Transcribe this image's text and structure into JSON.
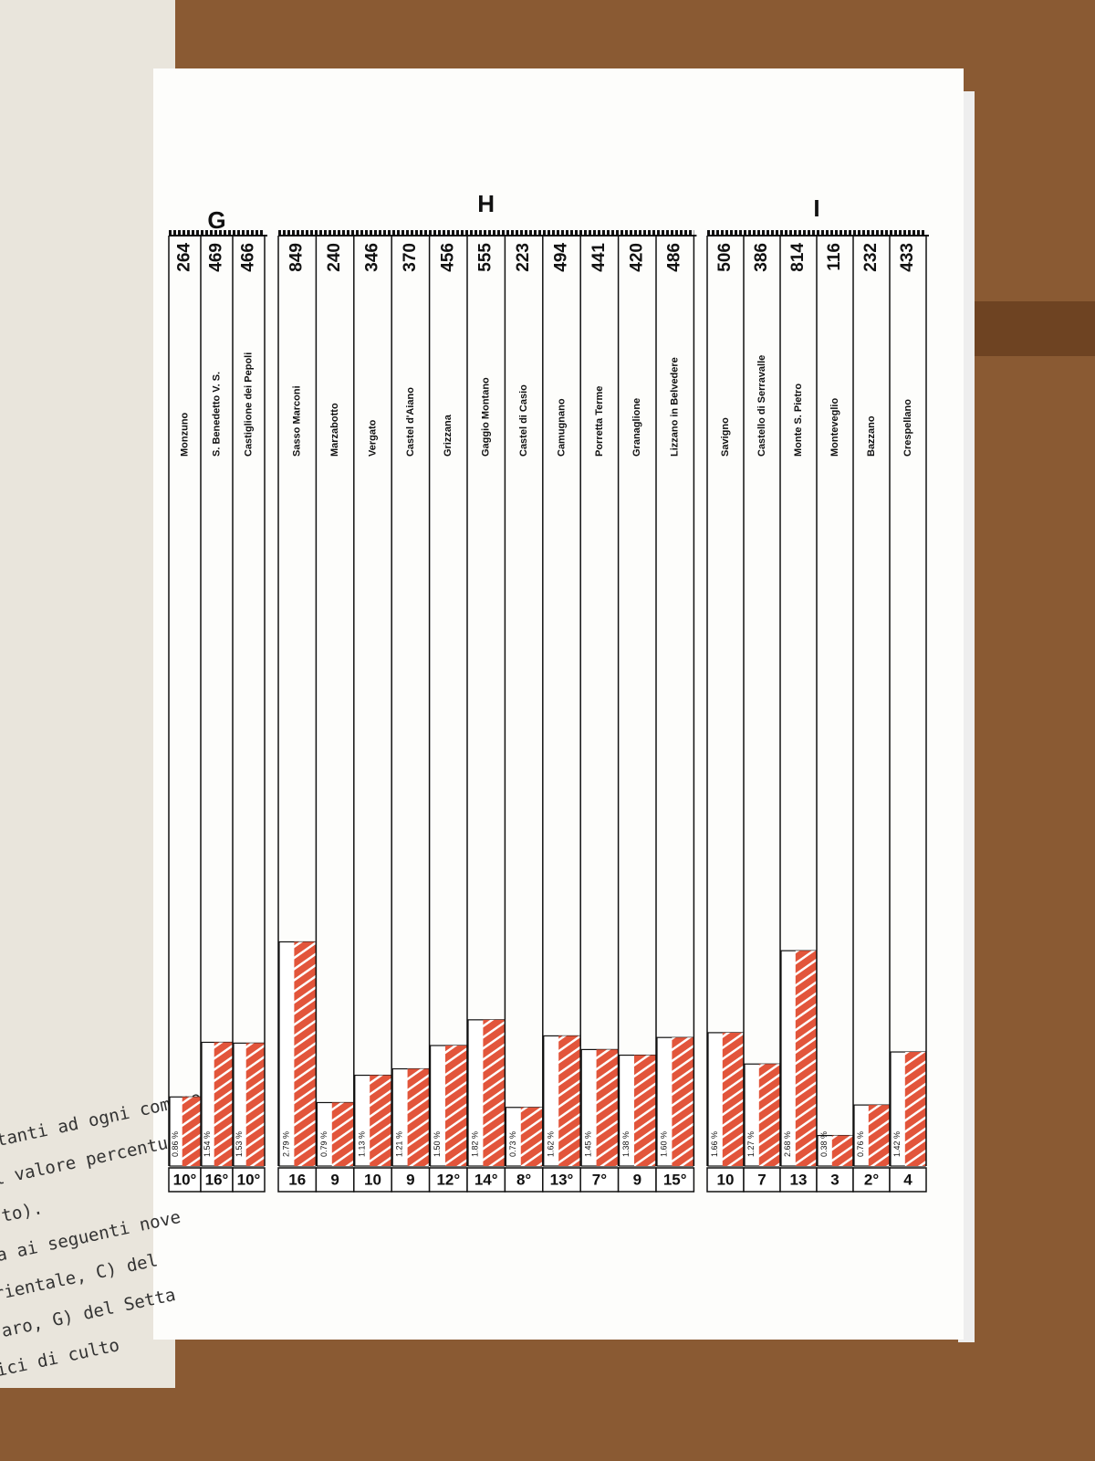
{
  "left_page_text": [
    "pettanti ad ogni comune",
    "il valore percentuale",
    "to).",
    "enza ai seguenti nove",
    "orientale, C) del",
    "aro, G) del Setta",
    "difici di culto"
  ],
  "chart_data": [
    {
      "type": "bar",
      "title": "G",
      "color": "#e2553b",
      "categories": [
        "Monzuno",
        "S. Benedetto V. S.",
        "Castiglione dei Pepoli"
      ],
      "counts": [
        264,
        469,
        466
      ],
      "values": [
        0.86,
        1.54,
        1.53
      ],
      "value_labels": [
        "0.86 %",
        "1.54 %",
        "1.53 %"
      ],
      "ranks": [
        "10°",
        "16°",
        "10°"
      ]
    },
    {
      "type": "bar",
      "title": "H",
      "color": "#e2553b",
      "categories": [
        "Sasso Marconi",
        "Marzabotto",
        "Vergato",
        "Castel d'Aiano",
        "Grizzana",
        "Gaggio Montano",
        "Castel di Casio",
        "Camugnano",
        "Porretta Terme",
        "Granaglione",
        "Lizzano in Belvedere"
      ],
      "counts": [
        849,
        240,
        346,
        370,
        456,
        555,
        223,
        494,
        441,
        420,
        486
      ],
      "values": [
        2.79,
        0.79,
        1.13,
        1.21,
        1.5,
        1.82,
        0.73,
        1.62,
        1.45,
        1.38,
        1.6
      ],
      "value_labels": [
        "2.79 %",
        "0.79 %",
        "1.13 %",
        "1.21 %",
        "1.50 %",
        "1.82 %",
        "0.73 %",
        "1.62 %",
        "1.45 %",
        "1.38 %",
        "1.60 %"
      ],
      "ranks": [
        "16",
        "9",
        "10",
        "9",
        "12°",
        "14°",
        "8°",
        "13°",
        "7°",
        "9",
        "15°"
      ]
    },
    {
      "type": "bar",
      "title": "I",
      "color": "#e2553b",
      "categories": [
        "Savigno",
        "Castello di Serravalle",
        "Monte S. Pietro",
        "Monteveglio",
        "Bazzano",
        "Crespellano"
      ],
      "counts": [
        506,
        386,
        814,
        116,
        232,
        433
      ],
      "values": [
        1.66,
        1.27,
        2.68,
        0.38,
        0.76,
        1.42
      ],
      "value_labels": [
        "1.66 %",
        "1.27 %",
        "2.68 %",
        "0.38 %",
        "0.76 %",
        "1.42 %"
      ],
      "ranks": [
        "10",
        "7",
        "13",
        "3",
        "2°",
        "4"
      ]
    }
  ]
}
